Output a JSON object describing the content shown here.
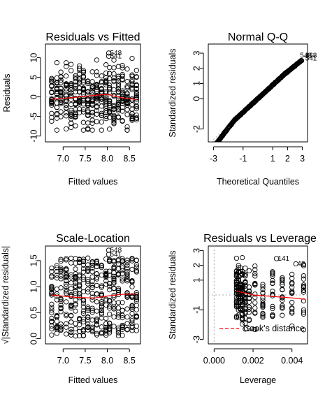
{
  "chart_data": [
    {
      "type": "scatter",
      "title": "Residuals vs Fitted",
      "xlabel": "Fitted values",
      "ylabel": "Residuals",
      "xlim": [
        6.6,
        8.75
      ],
      "ylim": [
        -11.5,
        13.5
      ],
      "xticks": [
        "7.0",
        "7.5",
        "8.0",
        "8.5"
      ],
      "xtick_values": [
        7.0,
        7.5,
        8.0,
        8.5
      ],
      "yticks": [
        "-10",
        "-5",
        "0",
        "5",
        "10"
      ],
      "ytick_values": [
        -10,
        -5,
        0,
        5,
        10
      ],
      "x_levels": [
        6.74,
        6.86,
        6.95,
        7.07,
        7.18,
        7.28,
        7.37,
        7.46,
        7.56,
        7.66,
        7.76,
        7.87,
        7.97,
        8.05,
        8.15,
        8.25,
        8.34,
        8.45,
        8.56,
        8.66
      ],
      "y_range": [
        -8.5,
        10.5
      ],
      "smooth": {
        "x": [
          6.74,
          7.2,
          7.7,
          8.0,
          8.3,
          8.66
        ],
        "y": [
          -0.6,
          -0.2,
          0.4,
          0.6,
          -0.2,
          -0.7
        ],
        "color": "#ff0000"
      },
      "ref_line": {
        "y": 0,
        "color": "#aaaaaa",
        "dash": true
      },
      "annotations": [
        {
          "label": "548",
          "x": 8.03,
          "y": 11.2
        },
        {
          "label": "541",
          "x": 8.03,
          "y": 10.4
        }
      ]
    },
    {
      "type": "scatter",
      "title": "Normal Q-Q",
      "xlabel": "Theoretical Quantiles",
      "ylabel": "Standardized residuals",
      "xlim": [
        -3.35,
        3.35
      ],
      "ylim": [
        -2.85,
        3.6
      ],
      "xticks": [
        "-3",
        "-1",
        "1",
        "2",
        "3"
      ],
      "xtick_values": [
        -3,
        -1,
        1,
        2,
        3
      ],
      "yticks": [
        "-2",
        "0",
        "1",
        "2",
        "3"
      ],
      "ytick_values": [
        -2,
        0,
        1,
        2,
        3
      ],
      "qq_range": [
        -3.0,
        2.95
      ],
      "ref_line": {
        "intercept": 0.0,
        "slope": 0.9,
        "color": "#aaaaaa",
        "dash": true
      },
      "annotations": [
        {
          "label": "548",
          "x": 2.75,
          "y": 2.85
        },
        {
          "label": "468",
          "x": 3.1,
          "y": 2.85
        },
        {
          "label": "541",
          "x": 3.1,
          "y": 2.65
        }
      ]
    },
    {
      "type": "scatter",
      "title": "Scale-Location",
      "xlabel": "Fitted values",
      "ylabel": "√|Standardized residuals|",
      "xlim": [
        6.6,
        8.75
      ],
      "ylim": [
        -0.1,
        1.78
      ],
      "xticks": [
        "7.0",
        "7.5",
        "8.0",
        "8.5"
      ],
      "xtick_values": [
        7.0,
        7.5,
        8.0,
        8.5
      ],
      "yticks": [
        "0.0",
        "0.5",
        "1.0",
        "1.5"
      ],
      "ytick_values": [
        0.0,
        0.5,
        1.0,
        1.5
      ],
      "x_levels": [
        6.74,
        6.86,
        6.95,
        7.07,
        7.18,
        7.28,
        7.37,
        7.46,
        7.56,
        7.66,
        7.76,
        7.87,
        7.97,
        8.05,
        8.15,
        8.25,
        8.34,
        8.45,
        8.56,
        8.66
      ],
      "y_range": [
        0.05,
        1.55
      ],
      "smooth": {
        "x": [
          6.74,
          7.2,
          7.7,
          8.0,
          8.3,
          8.66
        ],
        "y": [
          0.84,
          0.8,
          0.78,
          0.82,
          0.85,
          0.86
        ],
        "color": "#ff0000"
      },
      "annotations": [
        {
          "label": "548",
          "x": 8.03,
          "y": 1.7
        },
        {
          "label": "541",
          "x": 8.03,
          "y": 1.62
        }
      ]
    },
    {
      "type": "scatter",
      "title": "Residuals vs Leverage",
      "xlabel": "Leverage",
      "ylabel": "Standardized residuals",
      "xlim": [
        -0.0003,
        0.0048
      ],
      "ylim": [
        -3.3,
        3.3
      ],
      "xticks": [
        "0.000",
        "0.002",
        "0.004"
      ],
      "xtick_values": [
        0.0,
        0.002,
        0.004
      ],
      "yticks": [
        "-3",
        "-1",
        "1",
        "2",
        "3"
      ],
      "ytick_values": [
        -3,
        -1,
        1,
        2,
        3
      ],
      "x_levels": [
        0.00115,
        0.00125,
        0.00135,
        0.00145,
        0.0016,
        0.0018,
        0.0021,
        0.0025,
        0.003,
        0.0035,
        0.004,
        0.0046
      ],
      "y_range": [
        -2.4,
        2.6
      ],
      "smooth": {
        "x": [
          0.00115,
          0.002,
          0.003,
          0.004,
          0.0047
        ],
        "y": [
          0.25,
          0.0,
          -0.1,
          -0.2,
          -0.3
        ],
        "color": "#ff0000"
      },
      "ref_line_h": {
        "y": 0,
        "color": "#aaaaaa",
        "dash": true
      },
      "ref_line_v": {
        "x": 0,
        "color": "#aaaaaa",
        "dash": true
      },
      "legend": {
        "label": "Cook's distance",
        "placement": "bottom-left",
        "color": "#ff0000"
      },
      "annotations": [
        {
          "label": "141",
          "x": 0.0032,
          "y": 2.45
        },
        {
          "label": "42",
          "x": 0.0042,
          "y": 2.1
        },
        {
          "label": "541",
          "x": 0.0016,
          "y": -2.3
        }
      ]
    }
  ]
}
